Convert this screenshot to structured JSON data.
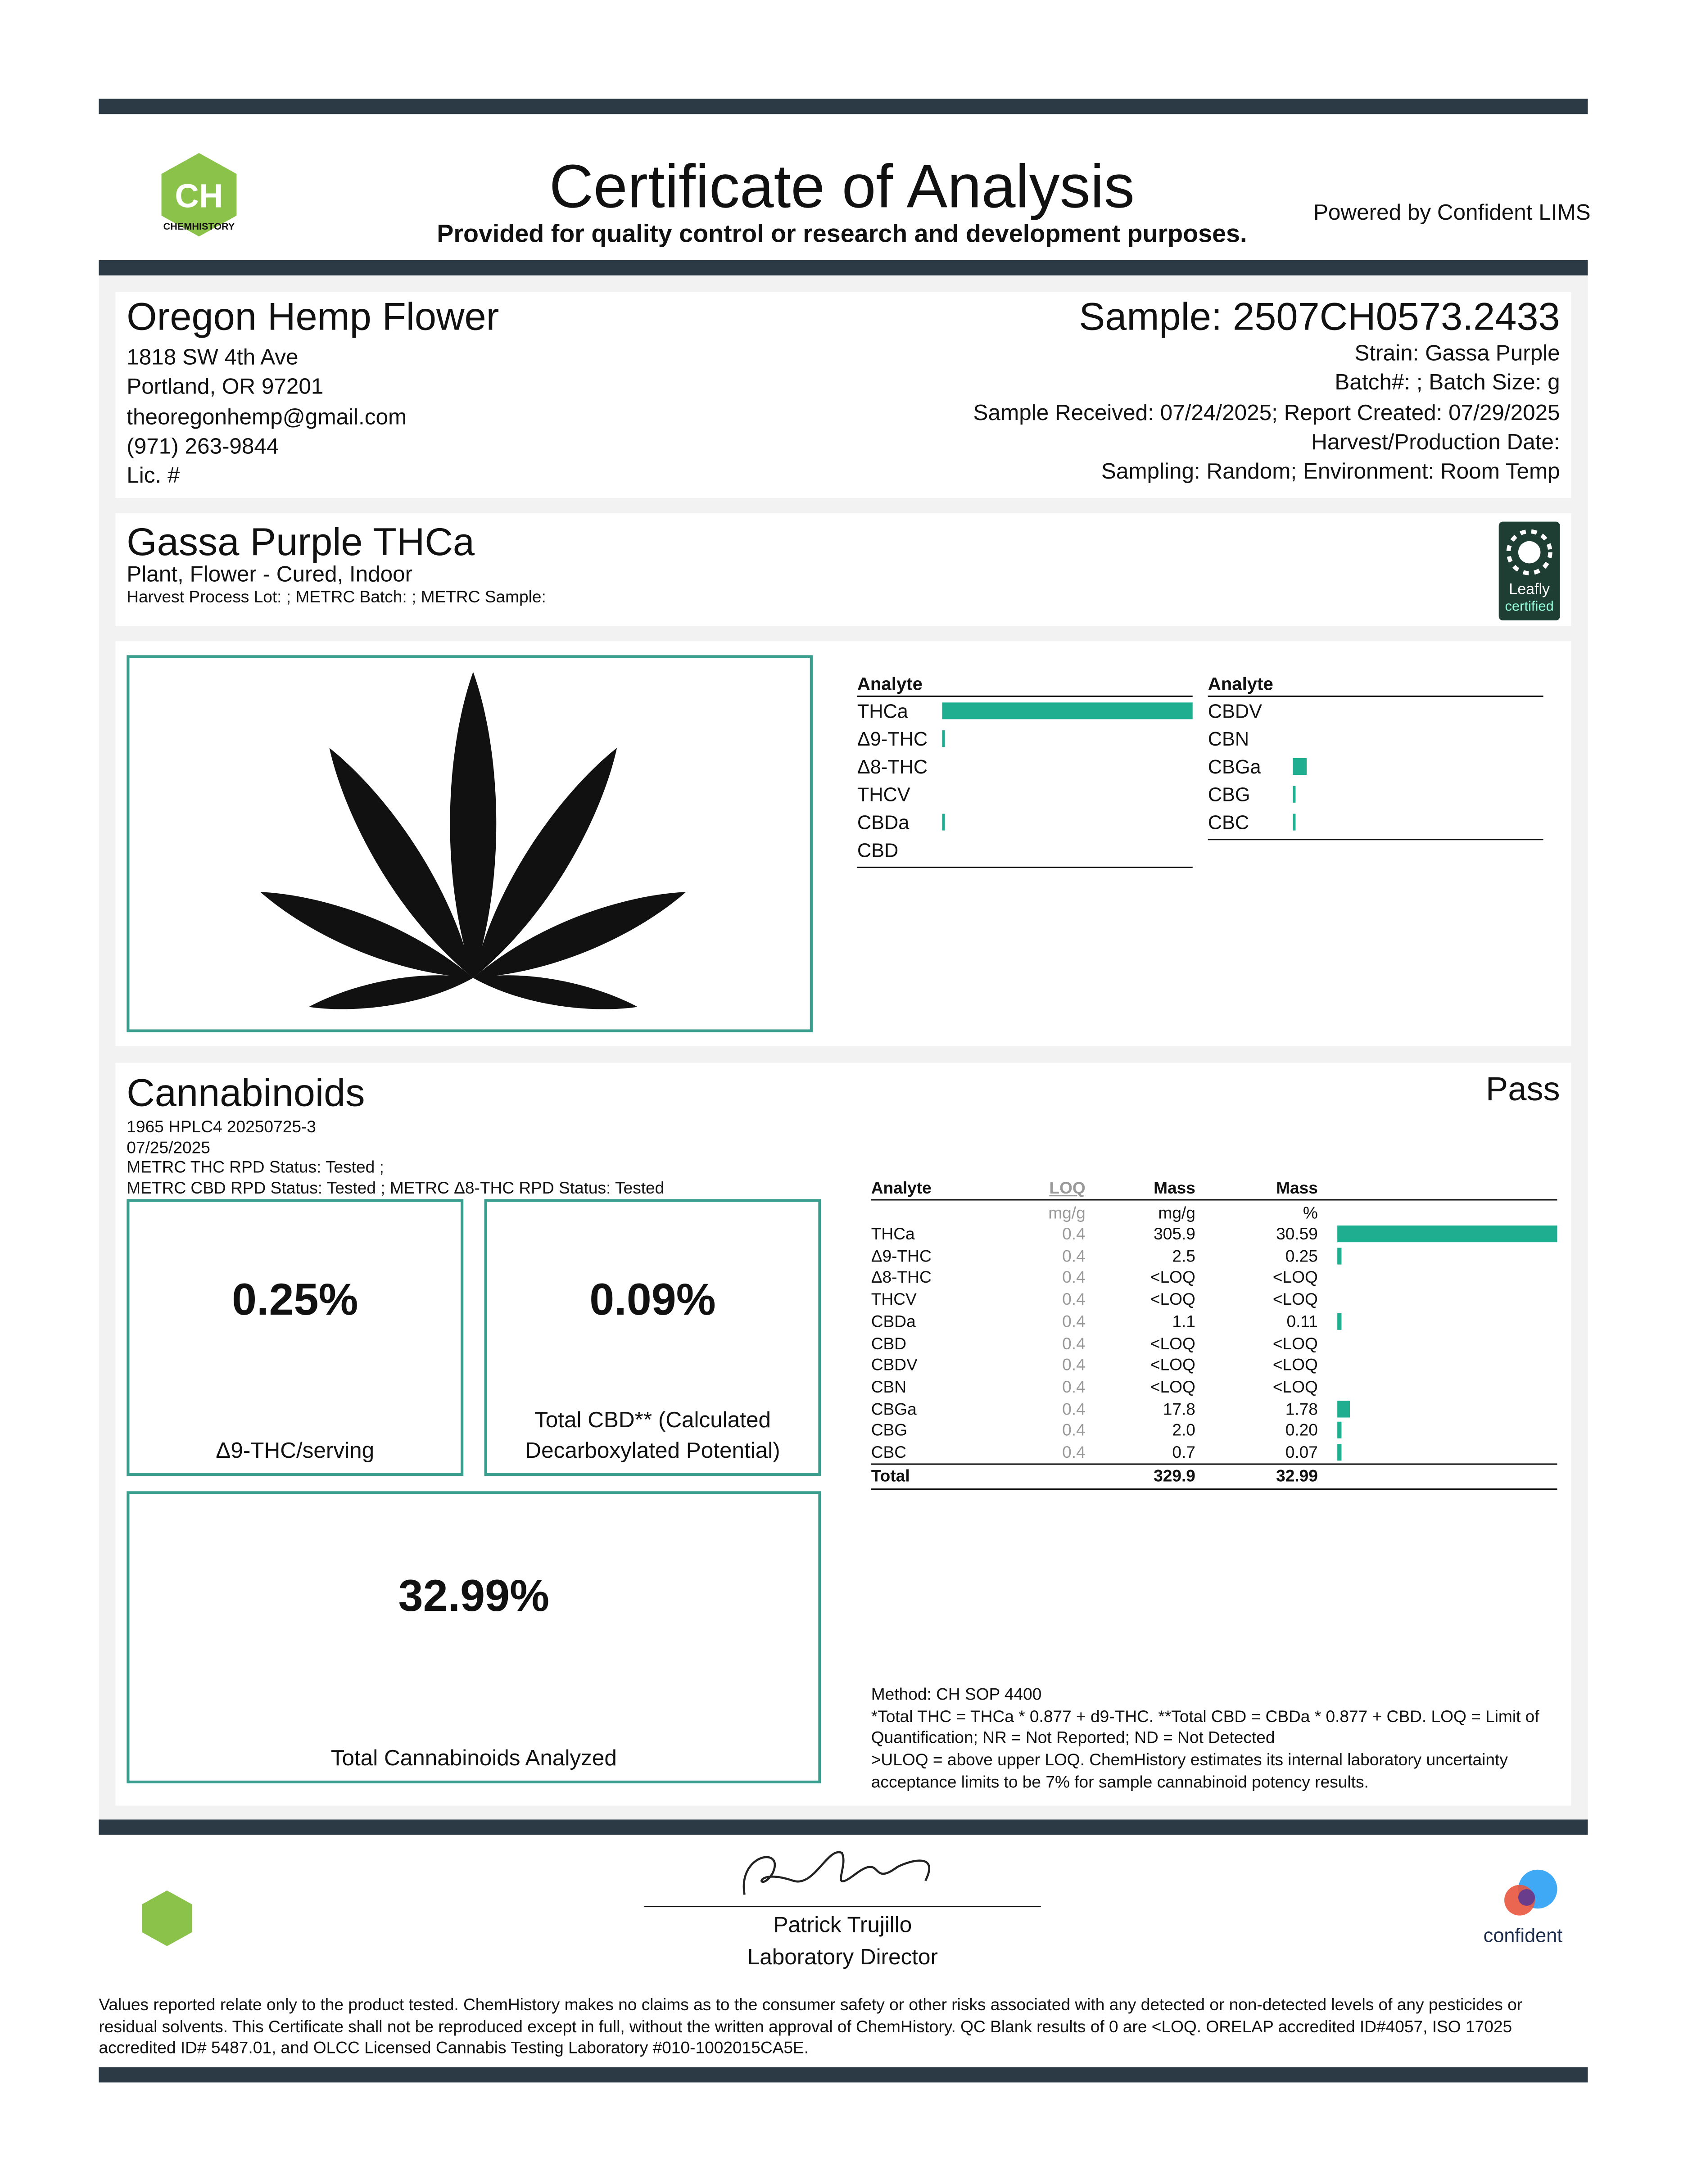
{
  "header": {
    "logo_mark": "CH",
    "logo_text": "CHEMHISTORY",
    "title": "Certificate of Analysis",
    "subtitle": "Provided for quality control or research and development purposes.",
    "powered": "Powered by Confident LIMS"
  },
  "client": {
    "name": "Oregon Hemp Flower",
    "lines": [
      "1818 SW 4th Ave",
      "Portland, OR 97201",
      "theoregonhemp@gmail.com",
      "(971) 263-9844",
      "Lic. #"
    ]
  },
  "sample": {
    "id": "Sample: 2507CH0573.2433",
    "lines": [
      "Strain: Gassa Purple",
      "Batch#: ; Batch Size:  g",
      "Sample Received: 07/24/2025; Report Created: 07/29/2025",
      "Harvest/Production Date:",
      "Sampling: Random; Environment: Room Temp"
    ]
  },
  "product": {
    "name": "Gassa Purple THCa",
    "type": "Plant, Flower - Cured, Indoor",
    "lot": "Harvest Process Lot: ; METRC Batch: ; METRC Sample:",
    "badge": [
      "Leafly",
      "certified"
    ]
  },
  "summary": {
    "header": "Analyte",
    "left": [
      "THCa",
      "Δ9-THC",
      "Δ8-THC",
      "THCV",
      "CBDa",
      "CBD"
    ],
    "right": [
      "CBDV",
      "CBN",
      "CBGa",
      "CBG",
      "CBC"
    ]
  },
  "cannabinoids": {
    "title": "Cannabinoids",
    "status": "Pass",
    "meta": [
      "1965 HPLC4 20250725-3",
      "07/25/2025",
      "METRC THC RPD Status: Tested ;",
      "METRC CBD RPD Status: Tested ; METRC Δ8-THC RPD Status: Tested"
    ],
    "cards": [
      {
        "value": "0.25%",
        "label": "Δ9-THC/serving"
      },
      {
        "value": "0.09%",
        "label": "Total CBD** (Calculated Decarboxylated Potential)"
      },
      {
        "value": "32.99%",
        "label": "Total Cannabinoids Analyzed"
      }
    ],
    "table": {
      "headers": [
        "Analyte",
        "LOQ",
        "Mass",
        "Mass"
      ],
      "units": [
        "mg/g",
        "mg/g",
        "%"
      ],
      "rows": [
        [
          "THCa",
          "0.4",
          "305.9",
          "30.59"
        ],
        [
          "Δ9-THC",
          "0.4",
          "2.5",
          "0.25"
        ],
        [
          "Δ8-THC",
          "0.4",
          "<LOQ",
          "<LOQ"
        ],
        [
          "THCV",
          "0.4",
          "<LOQ",
          "<LOQ"
        ],
        [
          "CBDa",
          "0.4",
          "1.1",
          "0.11"
        ],
        [
          "CBD",
          "0.4",
          "<LOQ",
          "<LOQ"
        ],
        [
          "CBDV",
          "0.4",
          "<LOQ",
          "<LOQ"
        ],
        [
          "CBN",
          "0.4",
          "<LOQ",
          "<LOQ"
        ],
        [
          "CBGa",
          "0.4",
          "17.8",
          "1.78"
        ],
        [
          "CBG",
          "0.4",
          "2.0",
          "0.20"
        ],
        [
          "CBC",
          "0.4",
          "0.7",
          "0.07"
        ]
      ],
      "total": [
        "Total",
        "329.9",
        "32.99"
      ]
    },
    "notes": [
      "Method: CH SOP 4400",
      "*Total THC = THCa * 0.877 + d9-THC. **Total CBD = CBDa * 0.877 + CBD. LOQ = Limit of",
      "Quantification; NR = Not Reported; ND = Not Detected",
      ">ULOQ = above upper LOQ. ChemHistory estimates its internal laboratory uncertainty",
      "acceptance limits to be 7% for sample cannabinoid potency results."
    ]
  },
  "footer": {
    "signer": "Patrick Trujillo",
    "role": "Laboratory Director",
    "brand": "confident",
    "disclaimer": [
      "Values reported relate only to the product tested. ChemHistory makes no claims as to the consumer safety or other risks associated with any detected or non-detected levels of any pesticides or",
      "residual solvents. This Certificate shall not be reproduced except in full, without the written approval of ChemHistory. QC Blank results of 0 are <LOQ.  ORELAP accredited ID#4057, ISO 17025",
      "accredited ID# 5487.01, and OLCC Licensed Cannabis Testing Laboratory #010-1002015CA5E."
    ]
  }
}
